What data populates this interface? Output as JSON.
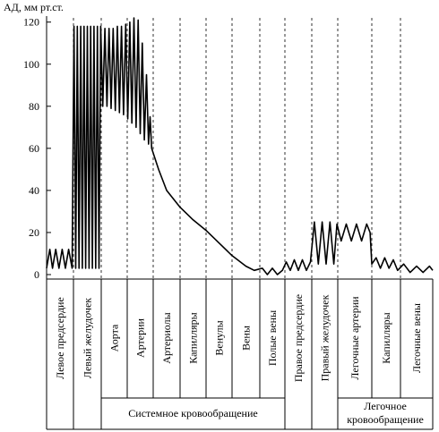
{
  "chart_data": {
    "type": "line",
    "y_label": "АД, мм рт.ст.",
    "ylim": [
      0,
      122
    ],
    "yticks": [
      0,
      20,
      40,
      60,
      80,
      100,
      120
    ],
    "xlim": [
      0,
      14
    ],
    "columns": [
      "Левое предсердие",
      "Левый желудочек",
      "Аорта",
      "Артерии",
      "Артериолы",
      "Капилляры",
      "Венулы",
      "Вены",
      "Полые вены",
      "Правое предсердие",
      "Правый желудочек",
      "Легочные артерии",
      "Капилляры",
      "Легочные вены"
    ],
    "groups": [
      {
        "lines": [
          "Системное кровообращение"
        ]
      },
      {
        "lines": [
          "Легочное",
          "кровообращение"
        ]
      }
    ],
    "series": [
      {
        "color": "#000000",
        "x": [
          0,
          0.12,
          0.22,
          0.34,
          0.46,
          0.58,
          0.7,
          0.82,
          0.95,
          1.02,
          1.08,
          1.14,
          1.2,
          1.26,
          1.32,
          1.38,
          1.44,
          1.5,
          1.56,
          1.62,
          1.68,
          1.74,
          1.8,
          1.86,
          1.92,
          1.98,
          2.06,
          2.14,
          2.22,
          2.3,
          2.38,
          2.46,
          2.54,
          2.62,
          2.7,
          2.78,
          2.86,
          2.94,
          3.02,
          3.1,
          3.18,
          3.26,
          3.34,
          3.42,
          3.5,
          3.58,
          3.66,
          3.74,
          3.82,
          3.88,
          3.94,
          4.2,
          4.5,
          5,
          5.5,
          6,
          6.5,
          7,
          7.5,
          7.8,
          8.1,
          8.3,
          8.5,
          8.7,
          8.9,
          9.05,
          9.2,
          9.35,
          9.5,
          9.65,
          9.8,
          9.95,
          10.1,
          10.25,
          10.4,
          10.55,
          10.7,
          10.85,
          10.97,
          11.1,
          11.25,
          11.4,
          11.55,
          11.7,
          11.85,
          11.95,
          12.0,
          12.15,
          12.3,
          12.45,
          12.6,
          12.75,
          12.9,
          13.1,
          13.3,
          13.5,
          13.7,
          13.9,
          14
        ],
        "values": [
          3,
          12,
          3,
          12,
          3,
          12,
          3,
          12,
          3,
          118,
          3,
          118,
          3,
          118,
          3,
          118,
          3,
          118,
          3,
          118,
          3,
          118,
          3,
          118,
          3,
          118,
          80,
          117,
          80,
          117,
          79,
          117,
          78,
          118,
          77,
          118,
          76,
          119,
          74,
          120,
          72,
          122,
          70,
          121,
          67,
          110,
          64,
          95,
          62,
          75,
          60,
          50,
          40,
          32,
          26,
          21,
          15,
          9,
          4,
          2,
          3,
          0,
          3,
          0,
          2,
          6,
          2,
          7,
          2,
          7,
          2,
          6,
          25,
          5,
          25,
          5,
          25,
          5,
          24,
          16,
          24,
          16,
          24,
          16,
          24,
          20,
          5,
          8,
          3,
          8,
          3,
          7,
          2,
          5,
          1,
          4,
          1,
          4,
          2
        ]
      }
    ]
  }
}
